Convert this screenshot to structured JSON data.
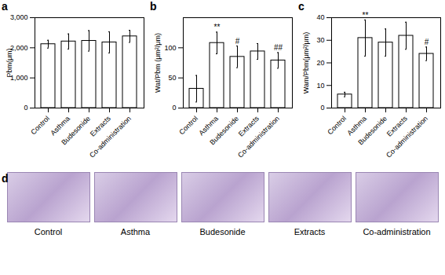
{
  "chart_data": [
    {
      "type": "bar",
      "panel": "a",
      "y_label": "Pbm(μm)",
      "categories": [
        "Control",
        "Asthma",
        "Budesonide",
        "Extracts",
        "Co-administration"
      ],
      "values": [
        2120,
        2210,
        2230,
        2180,
        2380
      ],
      "errors": [
        130,
        250,
        340,
        350,
        200
      ],
      "color": "#ffffff",
      "ylim": [
        0,
        3000
      ],
      "yticks": [
        0,
        1000,
        2000,
        3000
      ]
    },
    {
      "type": "bar",
      "panel": "b",
      "y_label": "Wat/Pbm (μm²/μm)",
      "categories": [
        "Control",
        "Asthma",
        "Budesonide",
        "Extracts",
        "Co-administration"
      ],
      "values": [
        32,
        108,
        85,
        94,
        79
      ],
      "errors": [
        22,
        18,
        18,
        13,
        13
      ],
      "annotations": [
        null,
        "**",
        "#",
        null,
        "##"
      ],
      "color": "#ffffff",
      "ylim": [
        0,
        150
      ],
      "yticks": [
        0,
        50,
        100
      ]
    },
    {
      "type": "bar",
      "panel": "c",
      "y_label": "Wam/Pbm(μm²/μm)",
      "categories": [
        "Control",
        "Asthma",
        "Budesonide",
        "Extracts",
        "Co-administration"
      ],
      "values": [
        6,
        31,
        29,
        32,
        24
      ],
      "errors": [
        1,
        8,
        6,
        6,
        3
      ],
      "annotations": [
        null,
        "**",
        null,
        null,
        "#"
      ],
      "color": "#ffffff",
      "ylim": [
        0,
        40
      ],
      "yticks": [
        0,
        10,
        20,
        30,
        40
      ]
    }
  ],
  "images": {
    "panel": "d",
    "labels": [
      "Control",
      "Asthma",
      "Budesonide",
      "Extracts",
      "Co-administration"
    ]
  }
}
